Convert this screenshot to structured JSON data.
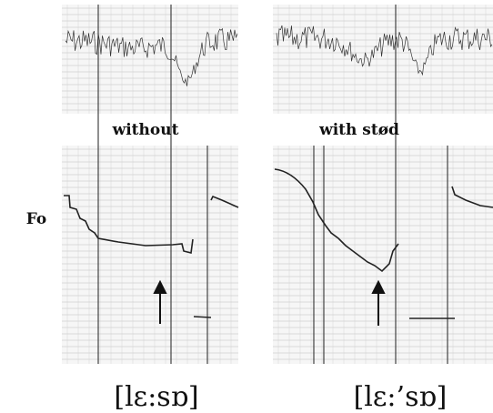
{
  "labels": {
    "left_panel": "without",
    "right_panel": "with stød",
    "f0_axis": "Fo",
    "left_transcription": "[lɛ:sɒ]",
    "right_transcription": "[lɛ:’sɒ]"
  }
}
